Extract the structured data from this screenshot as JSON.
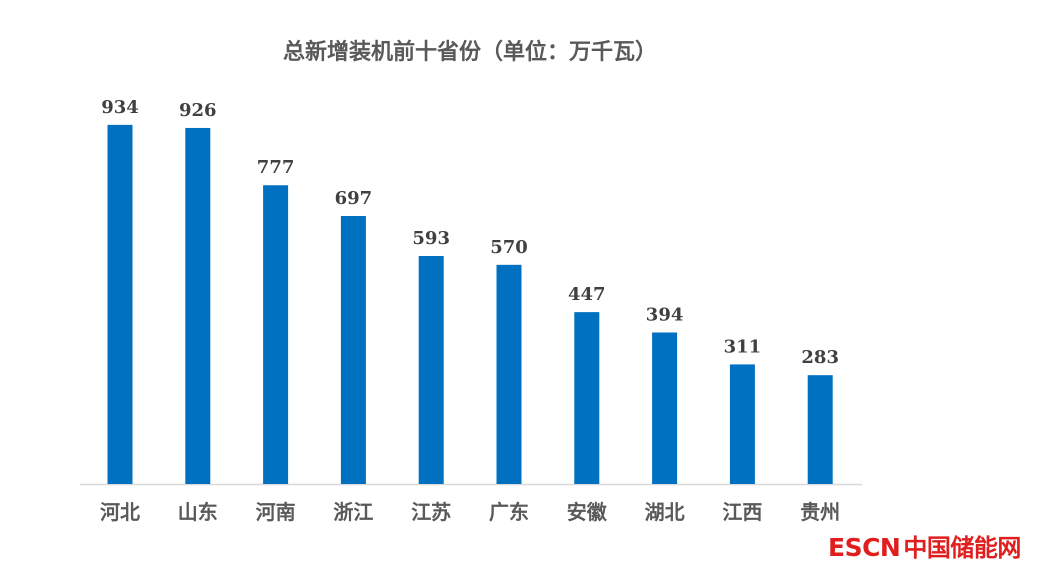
{
  "chart_data": {
    "type": "bar",
    "title": "总新增装机前十省份（单位：万千瓦）",
    "categories": [
      "河北",
      "山东",
      "河南",
      "浙江",
      "江苏",
      "广东",
      "安徽",
      "湖北",
      "江西",
      "贵州"
    ],
    "values": [
      934,
      926,
      777,
      697,
      593,
      570,
      447,
      394,
      311,
      283
    ],
    "ylim": [
      0,
      1000
    ],
    "grid": false,
    "legend": "none",
    "colors": {
      "bar": "#0070C0",
      "text": "#404040",
      "axis": "#d9d9d9"
    }
  },
  "watermark": {
    "latin": "ESCN",
    "chinese": "中国储能网",
    "color": "#e01e1e"
  }
}
